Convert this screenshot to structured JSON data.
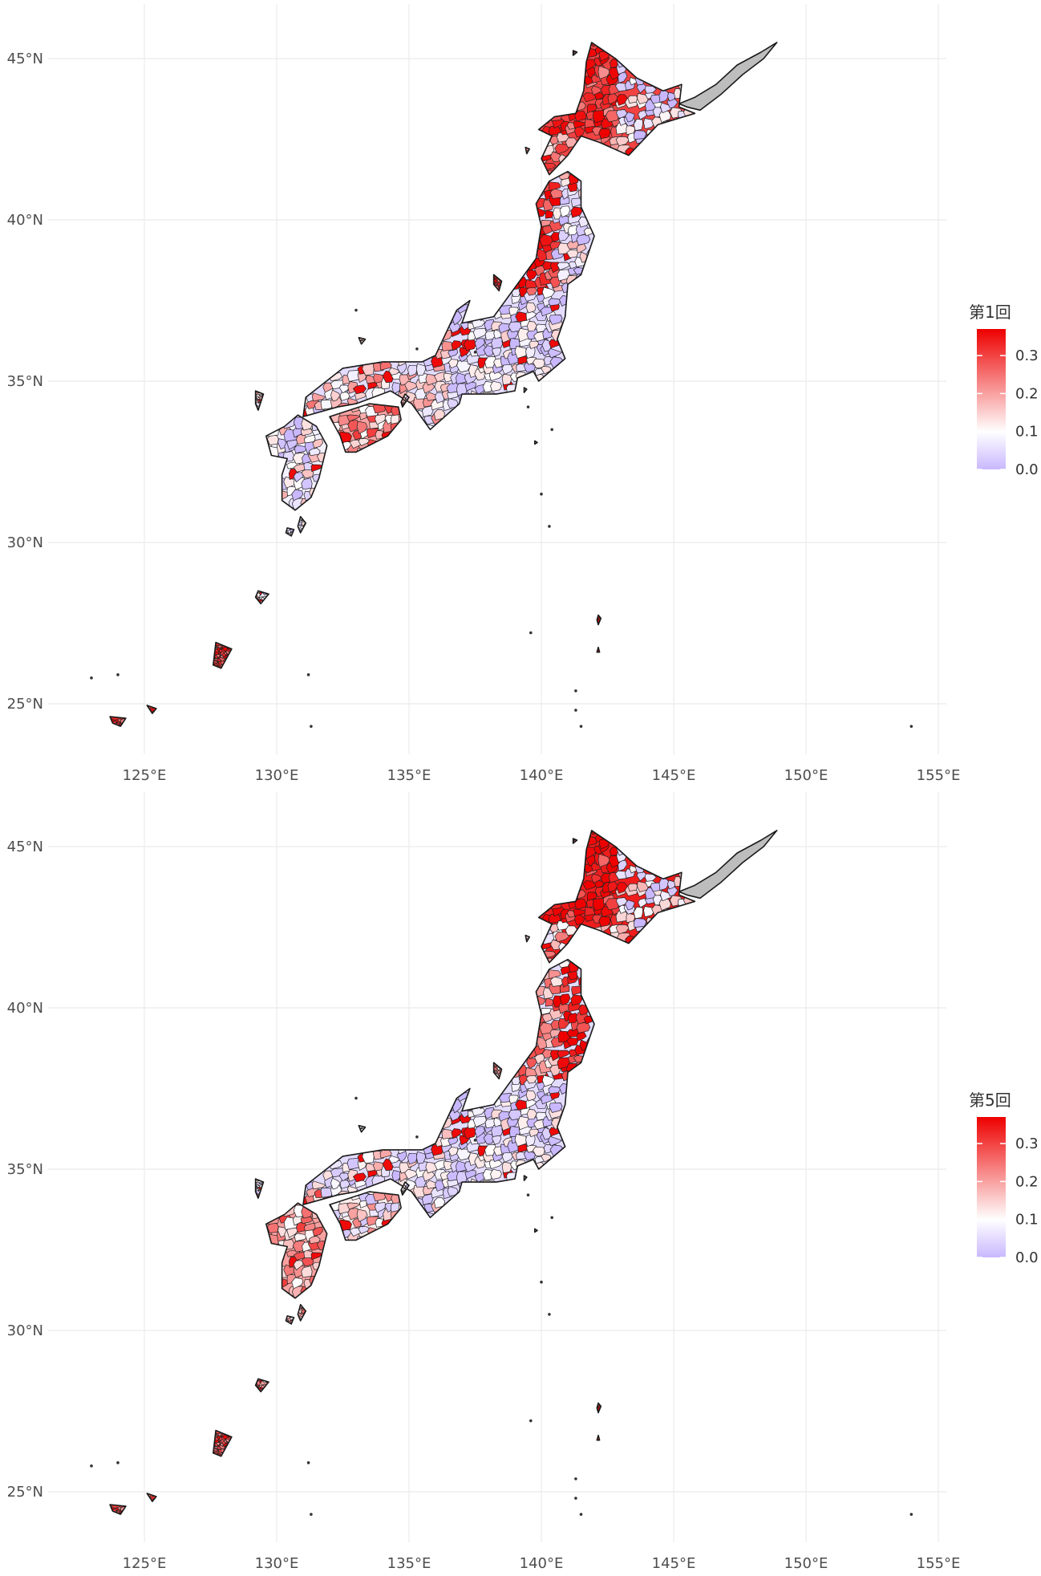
{
  "colors": {
    "low": "#c9b8ff",
    "mid": "#ffffff",
    "high": "#ee0000",
    "grid": "#ebebeb",
    "missing": "#bdbdbd"
  },
  "axes": {
    "x_ticks": [
      "125°E",
      "130°E",
      "135°E",
      "140°E",
      "145°E",
      "150°E",
      "155°E"
    ],
    "y_ticks": [
      "45°N",
      "40°N",
      "35°N",
      "30°N",
      "25°N"
    ],
    "x_values": [
      125,
      130,
      135,
      140,
      145,
      150,
      155
    ],
    "y_values": [
      45,
      40,
      35,
      30,
      25
    ]
  },
  "maps": [
    {
      "legend_title": "第1回",
      "legend_ticks": [
        "0.3",
        "0.2",
        "0.1",
        "0.0"
      ],
      "legend_values": [
        0.3,
        0.2,
        0.1,
        0.0
      ],
      "scale_range": [
        0,
        0.37
      ],
      "region_values": {
        "hokkaido_east": 0.05,
        "hokkaido_central": 0.3,
        "hokkaido_south": 0.22,
        "tohoku_west": 0.32,
        "tohoku_east": 0.08,
        "kanto": 0.04,
        "chubu": 0.05,
        "kinki": 0.12,
        "chugoku": 0.16,
        "shikoku": 0.2,
        "kyushu": 0.08,
        "okinawa": 0.33,
        "izu_ogasawara": 0.35
      }
    },
    {
      "legend_title": "第5回",
      "legend_ticks": [
        "0.3",
        "0.2",
        "0.1",
        "0.0"
      ],
      "legend_values": [
        0.3,
        0.2,
        0.1,
        0.0
      ],
      "scale_range": [
        0,
        0.37
      ],
      "region_values": {
        "hokkaido_east": 0.08,
        "hokkaido_central": 0.34,
        "hokkaido_south": 0.15,
        "tohoku_west": 0.2,
        "tohoku_east": 0.36,
        "kanto": 0.04,
        "chubu": 0.05,
        "kinki": 0.07,
        "chugoku": 0.1,
        "shikoku": 0.12,
        "kyushu": 0.2,
        "okinawa": 0.3,
        "izu_ogasawara": 0.3
      }
    }
  ]
}
